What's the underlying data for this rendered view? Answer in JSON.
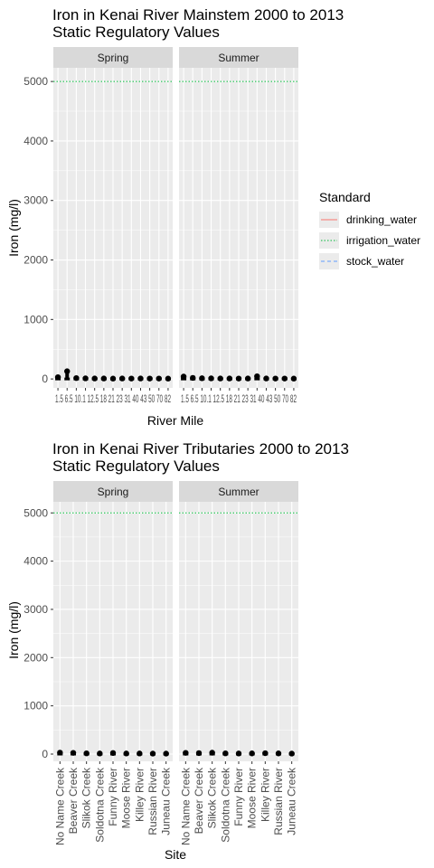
{
  "chart_data": [
    {
      "type": "line",
      "title": "Iron in Kenai River Mainstem  2000 to 2013",
      "subtitle": "Static Regulatory Values",
      "xlabel": "River Mile",
      "ylabel": "Iron (mg/l)",
      "ylim": [
        -150,
        5230
      ],
      "yticks": [
        0,
        1000,
        2000,
        3000,
        4000,
        5000
      ],
      "xtick_label_text": "1.5 6.5 10.1 12.5 18 21 23 31 40 43 50 70 82",
      "x": [
        "1.5",
        "6.5",
        "10.1",
        "12.5",
        "18",
        "21",
        "23",
        "31",
        "40",
        "43",
        "50",
        "70",
        "82"
      ],
      "facets": [
        "Spring",
        "Summer"
      ],
      "series": [
        {
          "name": "Spring",
          "values": [
            30,
            130,
            15,
            10,
            8,
            8,
            6,
            8,
            7,
            8,
            7,
            7,
            6
          ]
        },
        {
          "name": "Summer",
          "values": [
            40,
            18,
            12,
            10,
            8,
            8,
            7,
            8,
            45,
            8,
            7,
            7,
            6
          ]
        }
      ],
      "standards": [
        {
          "name": "irrigation_water",
          "value": 5000,
          "color": "#00BA38",
          "dash": "dotted"
        }
      ],
      "grid": true
    },
    {
      "type": "line",
      "title": "Iron in Kenai River Tributaries  2000 to 2013",
      "subtitle": "Static Regulatory Values",
      "xlabel": "Site",
      "ylabel": "Iron (mg/l)",
      "ylim": [
        -150,
        5230
      ],
      "yticks": [
        0,
        1000,
        2000,
        3000,
        4000,
        5000
      ],
      "x": [
        "No Name Creek",
        "Beaver Creek",
        "Slikok Creek",
        "Soldotna Creek",
        "Funny River",
        "Moose River",
        "Killey River",
        "Russian River",
        "Juneau Creek"
      ],
      "facets": [
        "Spring",
        "Summer"
      ],
      "series": [
        {
          "name": "Spring",
          "values": [
            30,
            25,
            15,
            12,
            22,
            12,
            12,
            10,
            10
          ]
        },
        {
          "name": "Summer",
          "values": [
            25,
            20,
            28,
            15,
            12,
            14,
            18,
            14,
            10
          ]
        }
      ],
      "standards": [
        {
          "name": "irrigation_water",
          "value": 5000,
          "color": "#00BA38",
          "dash": "dotted"
        }
      ],
      "grid": true
    }
  ],
  "legend": {
    "title": "Standard",
    "placement": "right",
    "items": [
      {
        "label": "drinking_water",
        "color": "#F8766D",
        "dash": "solid"
      },
      {
        "label": "irrigation_water",
        "color": "#00BA38",
        "dash": "dotted"
      },
      {
        "label": "stock_water",
        "color": "#619CFF",
        "dash": "dashed"
      }
    ]
  },
  "colors": {
    "panel_bg": "#EBEBEB",
    "strip_bg": "#D9D9D9",
    "grid": "#FFFFFF",
    "points": "#000000"
  }
}
